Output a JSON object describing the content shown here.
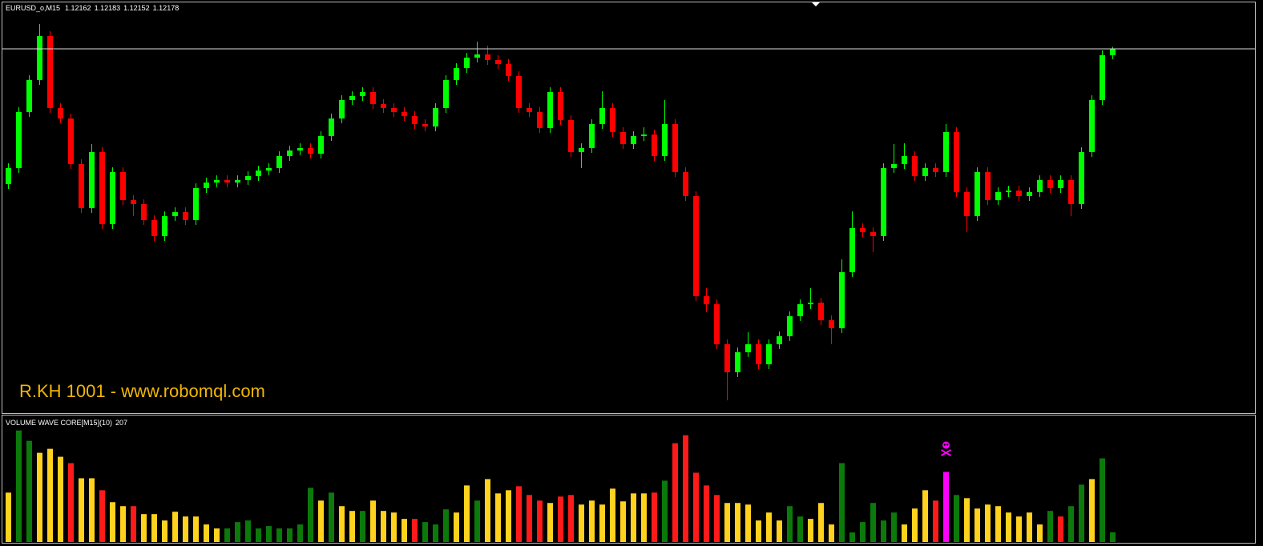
{
  "chart_data": [
    {
      "type": "candlestick",
      "title": "EURUSD_o,M15",
      "up_color": "#00ff00",
      "down_color": "#ff0000",
      "ylim": [
        1.11268,
        1.12294
      ],
      "open": [
        1.1184,
        1.1188,
        1.1202,
        1.121,
        1.1221,
        1.1203,
        1.12004,
        1.1189,
        1.1178,
        1.1192,
        1.1174,
        1.1187,
        1.118,
        1.1179,
        1.1175,
        1.1171,
        1.1176,
        1.1177,
        1.1175,
        1.1183,
        1.11844,
        1.1185,
        1.11844,
        1.1185,
        1.1186,
        1.11874,
        1.1188,
        1.1191,
        1.11924,
        1.1193,
        1.11916,
        1.1196,
        1.12004,
        1.1205,
        1.1206,
        1.1207,
        1.1204,
        1.1203,
        1.1202,
        1.1201,
        1.1199,
        1.11984,
        1.1203,
        1.121,
        1.1213,
        1.12156,
        1.12164,
        1.1215,
        1.1214,
        1.1211,
        1.1203,
        1.1202,
        1.1198,
        1.1207,
        1.12,
        1.1192,
        1.1193,
        1.1199,
        1.1203,
        1.1197,
        1.1194,
        1.1196,
        1.11964,
        1.1191,
        1.1199,
        1.1187,
        1.1181,
        1.1156,
        1.1154,
        1.1144,
        1.1137,
        1.1142,
        1.1144,
        1.1139,
        1.1144,
        1.1146,
        1.1151,
        1.1154,
        1.11544,
        1.115,
        1.1148,
        1.1162,
        1.1173,
        1.1172,
        1.1171,
        1.1188,
        1.1189,
        1.1191,
        1.1186,
        1.1188,
        1.1187,
        1.1197,
        1.1182,
        1.1176,
        1.1187,
        1.118,
        1.1182,
        1.11824,
        1.1181,
        1.1182,
        1.1185,
        1.1183,
        1.1185,
        1.1179,
        1.1192,
        1.1205,
        1.12162
      ],
      "high": [
        1.11892,
        1.12032,
        1.12112,
        1.1224,
        1.12222,
        1.12042,
        1.12016,
        1.11902,
        1.1194,
        1.11932,
        1.11882,
        1.11882,
        1.11812,
        1.11802,
        1.11762,
        1.11772,
        1.11782,
        1.11782,
        1.11842,
        1.11856,
        1.11862,
        1.11862,
        1.11862,
        1.11872,
        1.11886,
        1.11892,
        1.11922,
        1.11936,
        1.11942,
        1.11942,
        1.11972,
        1.12016,
        1.12062,
        1.12072,
        1.12082,
        1.12082,
        1.12052,
        1.12042,
        1.12032,
        1.12022,
        1.12002,
        1.12042,
        1.12112,
        1.12142,
        1.12168,
        1.12196,
        1.12186,
        1.12162,
        1.12152,
        1.12122,
        1.12042,
        1.12032,
        1.12082,
        1.12082,
        1.12012,
        1.11942,
        1.12002,
        1.12072,
        1.12042,
        1.11982,
        1.11972,
        1.11982,
        1.11976,
        1.1205,
        1.12002,
        1.11882,
        1.11822,
        1.1158,
        1.11552,
        1.11452,
        1.11432,
        1.1147,
        1.11452,
        1.11452,
        1.11472,
        1.11522,
        1.11552,
        1.1158,
        1.11556,
        1.11512,
        1.11652,
        1.11772,
        1.11742,
        1.11732,
        1.11892,
        1.1194,
        1.11942,
        1.11922,
        1.11892,
        1.11892,
        1.1199,
        1.11982,
        1.11832,
        1.11882,
        1.11882,
        1.11832,
        1.11836,
        1.11836,
        1.11832,
        1.11862,
        1.11862,
        1.11862,
        1.11862,
        1.11932,
        1.12062,
        1.12174,
        1.12183
      ],
      "low": [
        1.11828,
        1.11868,
        1.12008,
        1.12088,
        1.12018,
        1.11992,
        1.11878,
        1.11768,
        1.11768,
        1.11728,
        1.11728,
        1.11788,
        1.1176,
        1.11738,
        1.11698,
        1.11698,
        1.11748,
        1.11738,
        1.11738,
        1.11818,
        1.11832,
        1.11832,
        1.11832,
        1.11838,
        1.11848,
        1.11862,
        1.11868,
        1.11898,
        1.11912,
        1.11904,
        1.11904,
        1.11948,
        1.11992,
        1.12038,
        1.12048,
        1.12028,
        1.12018,
        1.12008,
        1.11998,
        1.11978,
        1.11972,
        1.11972,
        1.12018,
        1.12088,
        1.12118,
        1.12144,
        1.12138,
        1.12128,
        1.12098,
        1.12018,
        1.12008,
        1.11968,
        1.11968,
        1.11988,
        1.11908,
        1.1188,
        1.11918,
        1.11978,
        1.11958,
        1.11928,
        1.11928,
        1.11948,
        1.11898,
        1.11898,
        1.11858,
        1.11798,
        1.11548,
        1.1152,
        1.11428,
        1.113,
        1.11358,
        1.11408,
        1.11378,
        1.11378,
        1.11428,
        1.11448,
        1.11498,
        1.11528,
        1.11488,
        1.1144,
        1.11468,
        1.11608,
        1.11708,
        1.1167,
        1.11698,
        1.11868,
        1.11878,
        1.11848,
        1.11848,
        1.11858,
        1.11858,
        1.11808,
        1.1172,
        1.11748,
        1.11788,
        1.11788,
        1.11808,
        1.11798,
        1.11798,
        1.11808,
        1.11818,
        1.11818,
        1.1176,
        1.11778,
        1.11908,
        1.12038,
        1.12152
      ],
      "close": [
        1.1188,
        1.1202,
        1.121,
        1.1221,
        1.1203,
        1.12004,
        1.1189,
        1.1178,
        1.1192,
        1.1174,
        1.1187,
        1.118,
        1.1179,
        1.1175,
        1.1171,
        1.1176,
        1.1177,
        1.1175,
        1.1183,
        1.11844,
        1.1185,
        1.11844,
        1.1185,
        1.1186,
        1.11874,
        1.1188,
        1.1191,
        1.11924,
        1.1193,
        1.11916,
        1.1196,
        1.12004,
        1.1205,
        1.1206,
        1.1207,
        1.1204,
        1.1203,
        1.1202,
        1.1201,
        1.1199,
        1.11984,
        1.1203,
        1.121,
        1.1213,
        1.12156,
        1.12164,
        1.1215,
        1.1214,
        1.1211,
        1.1203,
        1.1202,
        1.1198,
        1.1207,
        1.12,
        1.1192,
        1.1193,
        1.1199,
        1.1203,
        1.1197,
        1.1194,
        1.1196,
        1.11964,
        1.1191,
        1.1199,
        1.1187,
        1.1181,
        1.1156,
        1.1154,
        1.1144,
        1.1137,
        1.1142,
        1.1144,
        1.1139,
        1.1144,
        1.1146,
        1.1151,
        1.1154,
        1.11544,
        1.115,
        1.1148,
        1.1162,
        1.1173,
        1.1172,
        1.1171,
        1.1188,
        1.1189,
        1.1191,
        1.1186,
        1.1188,
        1.1187,
        1.1197,
        1.1182,
        1.1176,
        1.1187,
        1.118,
        1.1182,
        1.11824,
        1.1181,
        1.1182,
        1.1185,
        1.1183,
        1.1185,
        1.1179,
        1.1192,
        1.1205,
        1.12162,
        1.12178
      ]
    },
    {
      "type": "bar",
      "title": "VOLUME WAVE CORE[M15](10)",
      "ylim": [
        0,
        2700
      ],
      "values": [
        1054,
        2380,
        2159,
        1904,
        1989,
        1819,
        1683,
        1360,
        1360,
        1105,
        850,
        765,
        765,
        595,
        595,
        459,
        646,
        544,
        544,
        374,
        289,
        289,
        425,
        459,
        289,
        340,
        289,
        289,
        374,
        1156,
        884,
        1054,
        765,
        663,
        663,
        884,
        663,
        629,
        493,
        493,
        425,
        374,
        697,
        629,
        1207,
        884,
        1343,
        1037,
        1105,
        1190,
        1003,
        884,
        833,
        969,
        1003,
        799,
        884,
        799,
        1139,
        867,
        1037,
        1037,
        1054,
        1309,
        2108,
        2278,
        1479,
        1207,
        1003,
        833,
        833,
        799,
        459,
        629,
        459,
        765,
        544,
        493,
        833,
        374,
        1683,
        204,
        425,
        833,
        459,
        629,
        374,
        714,
        1105,
        884,
        1496,
        1003,
        935,
        714,
        799,
        765,
        629,
        544,
        629,
        374,
        663,
        544,
        765,
        1224,
        1343,
        1785,
        207
      ],
      "colors": [
        "#ffd21e",
        "#0b7a0b",
        "#0b7a0b",
        "#ffd21e",
        "#ffd21e",
        "#ffd21e",
        "#ff1a1a",
        "#ffd21e",
        "#ffd21e",
        "#ff1a1a",
        "#ffd21e",
        "#ffd21e",
        "#ff1a1a",
        "#ffd21e",
        "#ffd21e",
        "#ffd21e",
        "#ffd21e",
        "#ffd21e",
        "#ffd21e",
        "#ffd21e",
        "#ffd21e",
        "#0b7a0b",
        "#0b7a0b",
        "#0b7a0b",
        "#0b7a0b",
        "#0b7a0b",
        "#0b7a0b",
        "#0b7a0b",
        "#0b7a0b",
        "#0b7a0b",
        "#ffd21e",
        "#0b7a0b",
        "#ffd21e",
        "#ffd21e",
        "#0b7a0b",
        "#ffd21e",
        "#ffd21e",
        "#ffd21e",
        "#ffd21e",
        "#ff1a1a",
        "#0b7a0b",
        "#0b7a0b",
        "#0b7a0b",
        "#ffd21e",
        "#ffd21e",
        "#0b7a0b",
        "#ffd21e",
        "#ffd21e",
        "#ffd21e",
        "#ff1a1a",
        "#ff1a1a",
        "#ff1a1a",
        "#ffd21e",
        "#ff1a1a",
        "#ff1a1a",
        "#ffd21e",
        "#ffd21e",
        "#ffd21e",
        "#ffd21e",
        "#ffd21e",
        "#ffd21e",
        "#ffd21e",
        "#ff1a1a",
        "#0b7a0b",
        "#ff1a1a",
        "#ff1a1a",
        "#ff1a1a",
        "#ff1a1a",
        "#ff1a1a",
        "#ffd21e",
        "#ffd21e",
        "#ffd21e",
        "#ffd21e",
        "#ffd21e",
        "#ffd21e",
        "#0b7a0b",
        "#0b7a0b",
        "#ffd21e",
        "#ffd21e",
        "#ffd21e",
        "#0b7a0b",
        "#0b7a0b",
        "#0b7a0b",
        "#0b7a0b",
        "#0b7a0b",
        "#0b7a0b",
        "#ffd21e",
        "#ffd21e",
        "#ffd21e",
        "#ff1a1a",
        "#ff00ff",
        "#0b7a0b",
        "#ffd21e",
        "#ffd21e",
        "#ffd21e",
        "#ffd21e",
        "#ffd21e",
        "#ffd21e",
        "#ffd21e",
        "#ffd21e",
        "#0b7a0b",
        "#ff1a1a",
        "#0b7a0b",
        "#0b7a0b",
        "#ffd21e",
        "#0b7a0b",
        "#0b7a0b"
      ]
    }
  ],
  "watermark": "R.KH 1001 - www.robomql.com"
}
